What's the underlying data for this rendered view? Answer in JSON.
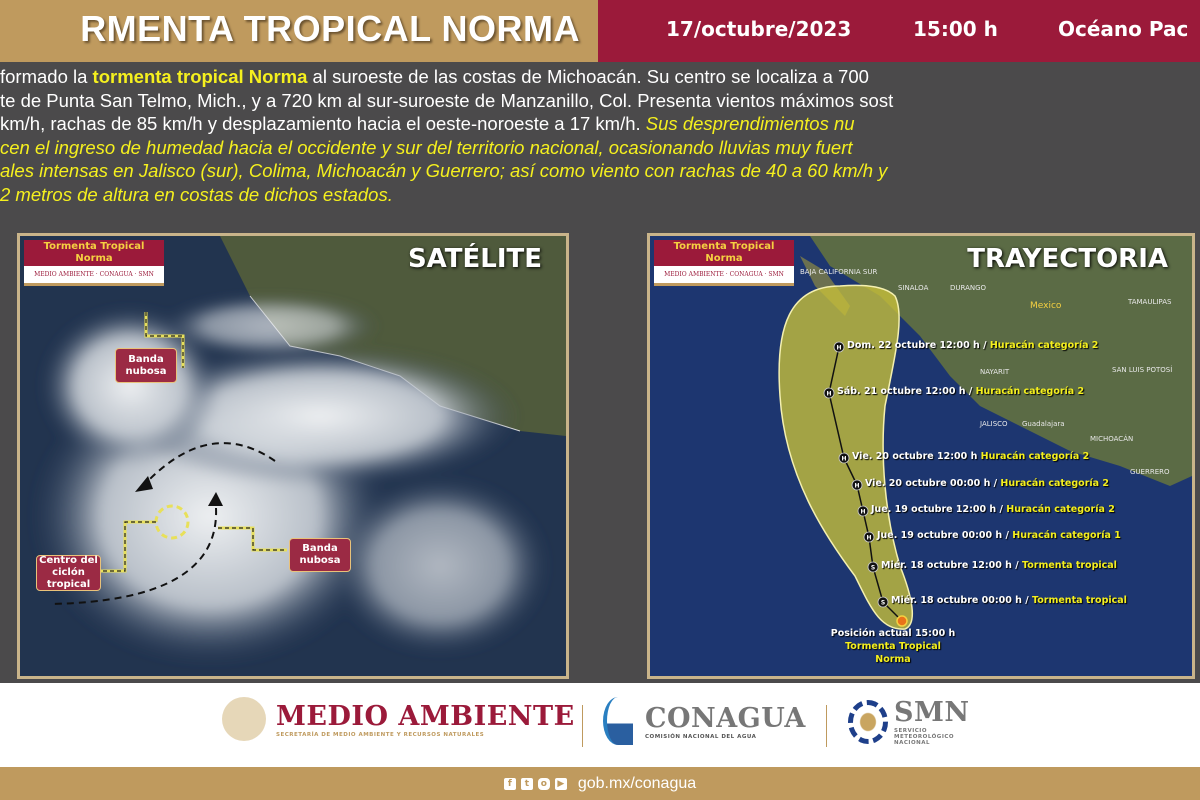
{
  "header": {
    "title": "RMENTA TROPICAL NORMA",
    "date": "17/octubre/2023",
    "time": "15:00 h",
    "region": "Océano Pac"
  },
  "bulletin": {
    "l1a": "formado la ",
    "l1b": "tormenta tropical Norma",
    "l1c": " al suroeste de las costas de Michoacán. Su centro se localiza a 700",
    "l2": "te de Punta San Telmo, Mich., y a 720 km al sur-suroeste de Manzanillo, Col. Presenta vientos máximos sost",
    "l3a": "km/h, rachas de 85 km/h y desplazamiento hacia el oeste-noroeste a 17 km/h. ",
    "l3b": "Sus desprendimientos nu",
    "l4": "cen el ingreso de humedad hacia el occidente y sur del territorio nacional, ocasionando lluvias muy fuert",
    "l5": "ales intensas en Jalisco (sur), Colima, Michoacán y Guerrero; así como viento con rachas de 40 a 60 km/h y",
    "l6": "2 metros de altura en costas de dichos estados."
  },
  "satellite": {
    "title": "SATÉLITE",
    "badge_title": "Tormenta Tropical Norma",
    "badge_logos": "MEDIO AMBIENTE · CONAGUA · SMN",
    "labels": {
      "band1": "Banda nubosa",
      "band2": "Banda nubosa",
      "center": "Centro del ciclón tropical"
    }
  },
  "trajectory": {
    "title": "TRAYECTORIA",
    "badge_title": "Tormenta Tropical Norma",
    "badge_logos": "MEDIO AMBIENTE · CONAGUA · SMN",
    "map_labels": [
      "Mexico",
      "DURANGO",
      "SINALOA",
      "NAYARIT",
      "JALISCO",
      "MICHOACÁN",
      "GUERRERO",
      "SAN LUIS POTOSÍ",
      "TAMAULIPAS",
      "Guadalajara",
      "BAJA CALIFORNIA SUR"
    ],
    "forecast": [
      {
        "symbol": "H",
        "date": "Dom. 22 octubre 12:00 h / ",
        "cat": "Huracán categoría 2"
      },
      {
        "symbol": "H",
        "date": "Sáb. 21 octubre 12:00 h / ",
        "cat": "Huracán categoría 2"
      },
      {
        "symbol": "H",
        "date": "Vie. 20 octubre 12:00 h ",
        "cat": "Huracán categoría 2"
      },
      {
        "symbol": "H",
        "date": "Vie. 20 octubre 00:00 h / ",
        "cat": "Huracán categoría 2"
      },
      {
        "symbol": "H",
        "date": "Jue. 19 octubre 12:00 h / ",
        "cat": "Huracán categoría 2"
      },
      {
        "symbol": "H",
        "date": "Jue. 19 octubre 00:00 h / ",
        "cat": "Huracán categoría 1"
      },
      {
        "symbol": "S",
        "date": "Miér. 18 octubre 12:00 h / ",
        "cat": "Tormenta tropical"
      },
      {
        "symbol": "S",
        "date": "Miér. 18 octubre 00:00 h / ",
        "cat": "Tormenta tropical"
      }
    ],
    "current": {
      "label": "Posición actual 15:00 h",
      "name": "Tormenta Tropical Norma"
    }
  },
  "footer": {
    "semarnat": "MEDIO AMBIENTE",
    "semarnat_sub": "SECRETARÍA DE MEDIO AMBIENTE Y RECURSOS NATURALES",
    "conagua": "CONAGUA",
    "conagua_sub": "COMISIÓN NACIONAL DEL AGUA",
    "smn": "SMN",
    "smn_sub": "SERVICIO METEOROLÓGICO NACIONAL",
    "social": [
      "facebook-icon",
      "twitter-icon",
      "instagram-icon",
      "youtube-icon"
    ],
    "url": "gob.mx/conagua"
  },
  "colors": {
    "gold": "#bf9a5e",
    "maroon": "#9b1a3a",
    "highlight": "#f5f01e",
    "background": "#4b4a4b"
  }
}
